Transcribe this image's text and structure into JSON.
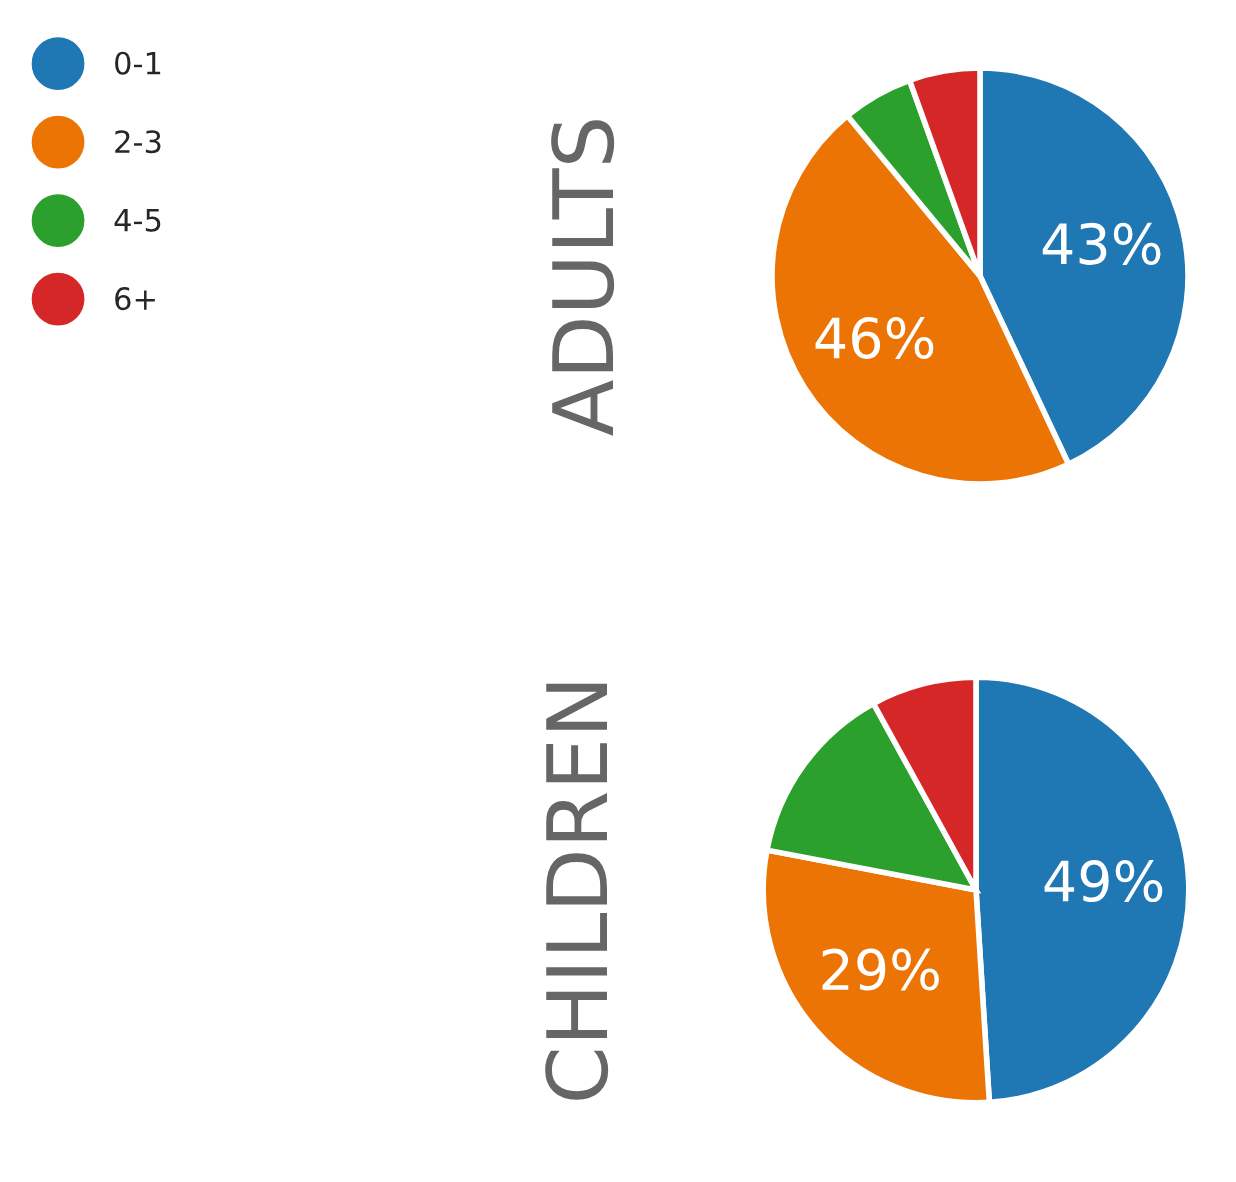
{
  "chart_data": [
    {
      "type": "pie",
      "title": "ADULTS",
      "categories": [
        "0-1",
        "2-3",
        "4-5",
        "6+"
      ],
      "values": [
        43,
        46,
        5.5,
        5.5
      ],
      "value_labels": [
        "43%",
        "46%",
        null,
        null
      ],
      "colors": [
        "#1f77b4",
        "#ec7405",
        "#2ca02c",
        "#d62728"
      ],
      "legend": "top left"
    },
    {
      "type": "pie",
      "title": "CHILDREN",
      "categories": [
        null,
        null,
        null,
        null
      ],
      "values": [
        49,
        29,
        14,
        8
      ],
      "value_labels": [
        "49%",
        "29%",
        null,
        null
      ],
      "colors": [
        "#1f77b4",
        "#ec7405",
        "#2ca02c",
        "#d62728"
      ]
    }
  ]
}
